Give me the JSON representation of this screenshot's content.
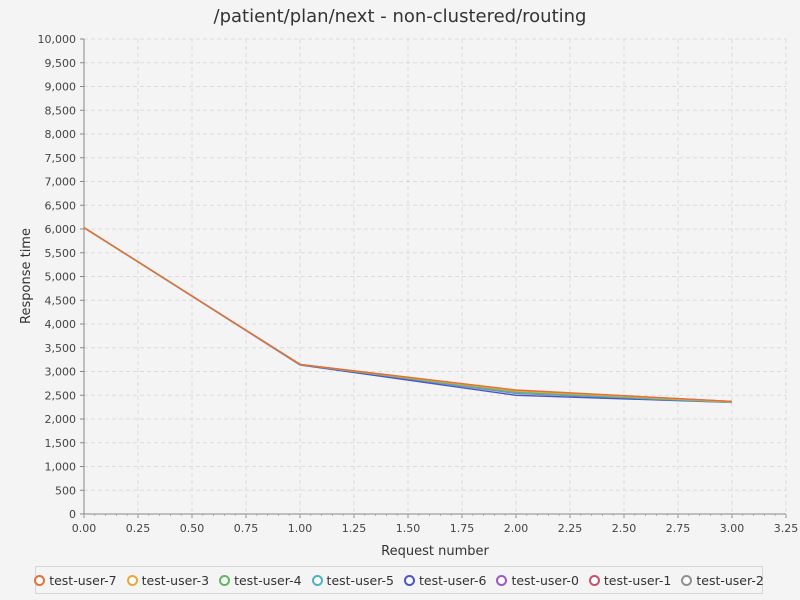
{
  "chart_data": {
    "type": "line",
    "title": "/patient/plan/next - non-clustered/routing",
    "xlabel": "Request number",
    "ylabel": "Response time",
    "xlim": [
      0,
      3.25
    ],
    "ylim": [
      0,
      10000
    ],
    "x_ticks": [
      "0.00",
      "0.25",
      "0.50",
      "0.75",
      "1.00",
      "1.25",
      "1.50",
      "1.75",
      "2.00",
      "2.25",
      "2.50",
      "2.75",
      "3.00",
      "3.25"
    ],
    "y_ticks": [
      "0",
      "500",
      "1,000",
      "1,500",
      "2,000",
      "2,500",
      "3,000",
      "3,500",
      "4,000",
      "4,500",
      "5,000",
      "5,500",
      "6,000",
      "6,500",
      "7,000",
      "7,500",
      "8,000",
      "8,500",
      "9,000",
      "9,500",
      "10,000"
    ],
    "grid": true,
    "legend_position": "bottom",
    "x": [
      0,
      1,
      2,
      3
    ],
    "series": [
      {
        "name": "test-user-7",
        "color": "#e0703c",
        "values": [
          6030,
          3150,
          2610,
          2370
        ]
      },
      {
        "name": "test-user-3",
        "color": "#e8a838",
        "values": [
          6030,
          3150,
          2590,
          2360
        ]
      },
      {
        "name": "test-user-4",
        "color": "#5cb85c",
        "values": [
          6030,
          3150,
          2570,
          2360
        ]
      },
      {
        "name": "test-user-5",
        "color": "#4ab3c4",
        "values": [
          6030,
          3150,
          2550,
          2350
        ]
      },
      {
        "name": "test-user-6",
        "color": "#4a55c8",
        "values": [
          6030,
          3140,
          2500,
          2350
        ]
      },
      {
        "name": "test-user-0",
        "color": "#9b59c7",
        "values": [
          6030,
          3150,
          2540,
          2360
        ]
      },
      {
        "name": "test-user-1",
        "color": "#c8506e",
        "values": [
          6030,
          3150,
          2600,
          2370
        ]
      },
      {
        "name": "test-user-2",
        "color": "#909090",
        "values": [
          6030,
          3150,
          2580,
          2360
        ]
      }
    ]
  }
}
